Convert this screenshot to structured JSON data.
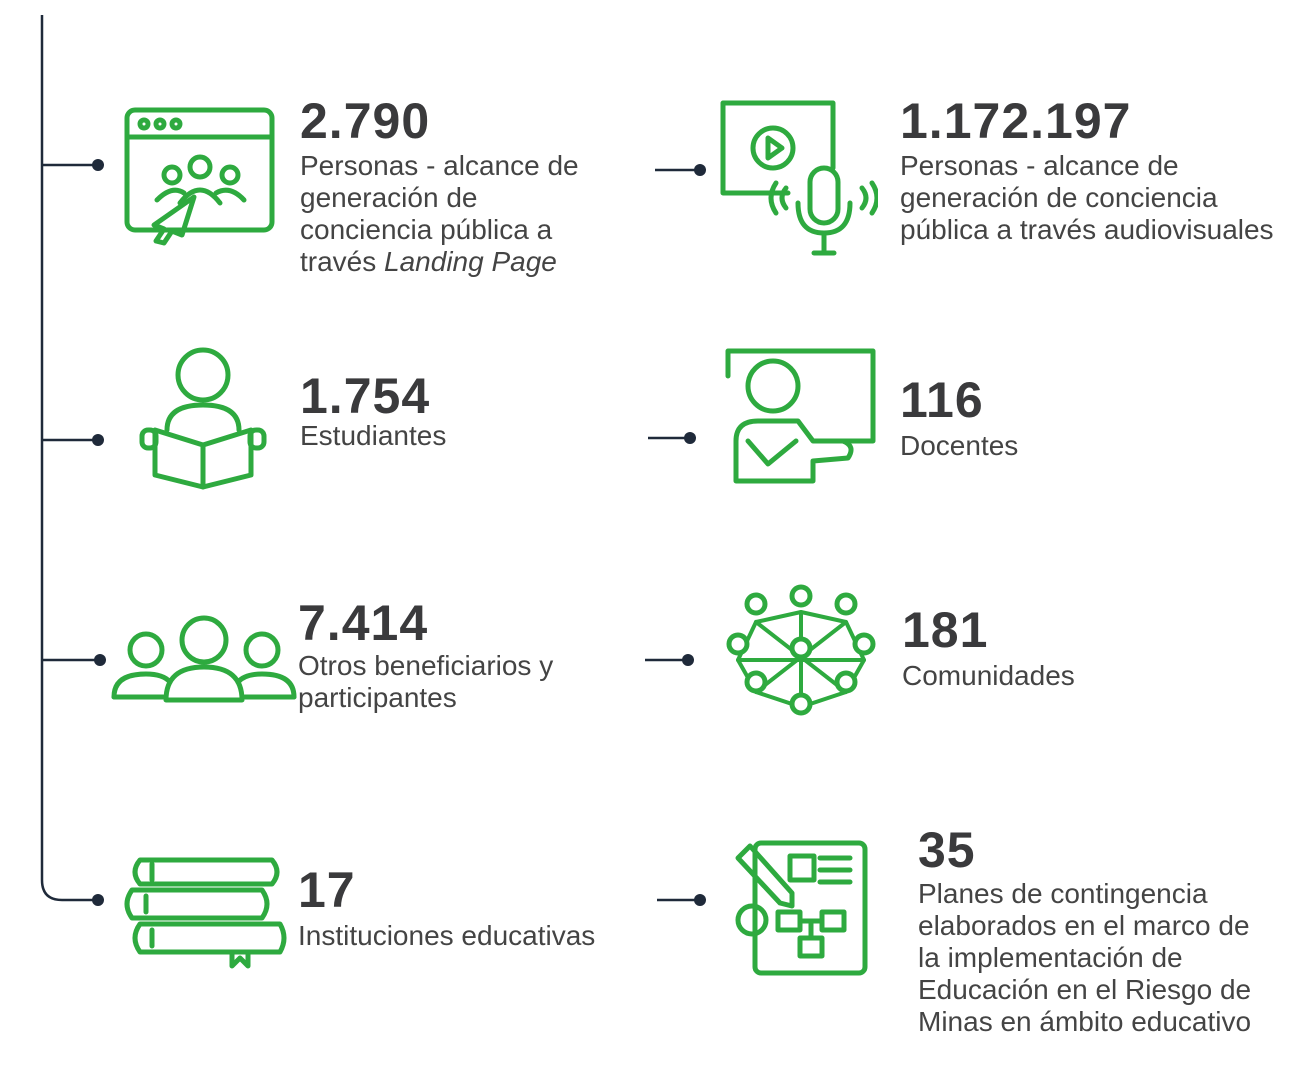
{
  "items": [
    {
      "number": "2.790",
      "description": {
        "text": "Personas - alcance de generación de conciencia pública a través",
        "emphasis": "Landing Page"
      }
    },
    {
      "number": "1.172.197",
      "description": "Personas - alcance de generación de conciencia pública a través audiovisuales"
    },
    {
      "number": "1.754",
      "description": "Estudiantes"
    },
    {
      "number": "116",
      "description": "Docentes"
    },
    {
      "number": "7.414",
      "description": "Otros beneficiarios y participantes"
    },
    {
      "number": "181",
      "description": "Comunidades"
    },
    {
      "number": "17",
      "description": "Instituciones educativas"
    },
    {
      "number": "35",
      "description": "Planes de contingencia elaborados en el marco de la implementación de Educación en el Riesgo de Minas en ámbito educativo"
    }
  ]
}
